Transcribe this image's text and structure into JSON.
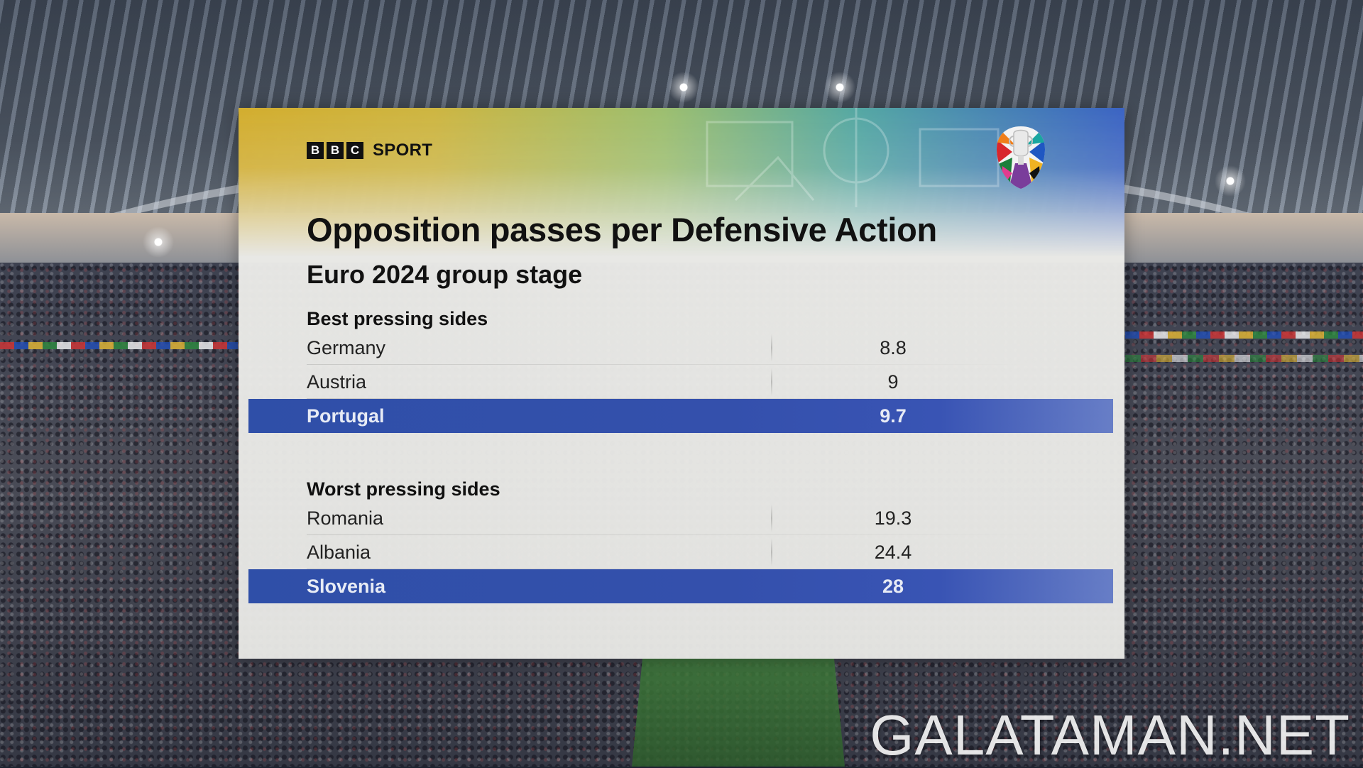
{
  "broadcaster": {
    "blocks": [
      "B",
      "B",
      "C"
    ],
    "sport_label": "SPORT"
  },
  "graphic": {
    "title": "Opposition passes per Defensive Action",
    "subtitle": "Euro 2024 group stage",
    "best": {
      "heading": "Best pressing sides",
      "rows": [
        {
          "team": "Germany",
          "value": "8.8"
        },
        {
          "team": "Austria",
          "value": "9"
        },
        {
          "team": "Portugal",
          "value": "9.7"
        }
      ]
    },
    "worst": {
      "heading": "Worst pressing sides",
      "rows": [
        {
          "team": "Romania",
          "value": "19.3"
        },
        {
          "team": "Albania",
          "value": "24.4"
        },
        {
          "team": "Slovenia",
          "value": "28"
        }
      ]
    }
  },
  "watermark": "GALATAMAN.NET",
  "colors": {
    "highlight": "#3450ac",
    "gradient_gold": "#d2ad2e",
    "gradient_blue": "#3b63c3"
  },
  "icons": {
    "trophy": "euro-2024-trophy-icon"
  }
}
